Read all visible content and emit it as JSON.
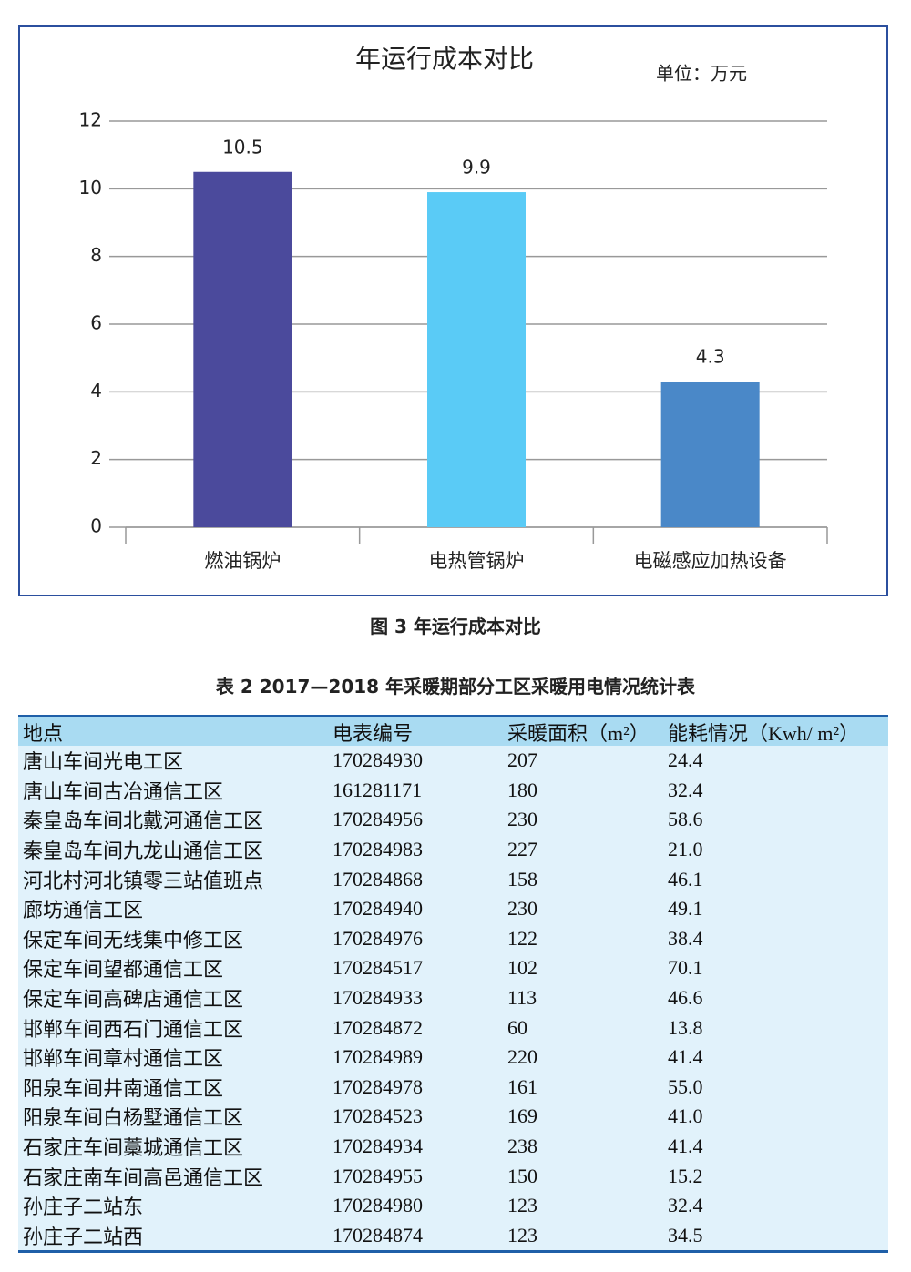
{
  "chart_data": {
    "type": "bar",
    "title": "年运行成本对比",
    "subtitle": "单位：万元",
    "categories": [
      "燃油锅炉",
      "电热管锅炉",
      "电磁感应加热设备"
    ],
    "values": [
      10.5,
      9.9,
      4.3
    ],
    "colors": [
      "#4b4a9c",
      "#5acbf6",
      "#4a88c8"
    ],
    "ylim": [
      0,
      12
    ],
    "yticks": [
      0,
      2,
      4,
      6,
      8,
      10,
      12
    ],
    "grid": true
  },
  "figure_caption": "图 3  年运行成本对比",
  "table": {
    "title": "表 2   2017—2018 年采暖期部分工区采暖用电情况统计表",
    "header": [
      "地点",
      "电表编号",
      "采暖面积（m²）",
      "能耗情况（Kwh/ m²）"
    ],
    "rows": [
      [
        "唐山车间光电工区",
        "170284930",
        "207",
        "24.4"
      ],
      [
        "唐山车间古冶通信工区",
        "161281171",
        "180",
        "32.4"
      ],
      [
        "秦皇岛车间北戴河通信工区",
        "170284956",
        "230",
        "58.6"
      ],
      [
        "秦皇岛车间九龙山通信工区",
        "170284983",
        "227",
        "21.0"
      ],
      [
        "河北村河北镇零三站值班点",
        "170284868",
        "158",
        "46.1"
      ],
      [
        "廊坊通信工区",
        "170284940",
        "230",
        "49.1"
      ],
      [
        "保定车间无线集中修工区",
        "170284976",
        "122",
        "38.4"
      ],
      [
        "保定车间望都通信工区",
        "170284517",
        "102",
        "70.1"
      ],
      [
        "保定车间高碑店通信工区",
        "170284933",
        "113",
        "46.6"
      ],
      [
        "邯郸车间西石门通信工区",
        "170284872",
        "60",
        "13.8"
      ],
      [
        "邯郸车间章村通信工区",
        "170284989",
        "220",
        "41.4"
      ],
      [
        "阳泉车间井南通信工区",
        "170284978",
        "161",
        "55.0"
      ],
      [
        "阳泉车间白杨墅通信工区",
        "170284523",
        "169",
        "41.0"
      ],
      [
        "石家庄车间藁城通信工区",
        "170284934",
        "238",
        "41.4"
      ],
      [
        "石家庄南车间高邑通信工区",
        "170284955",
        "150",
        "15.2"
      ],
      [
        "孙庄子二站东",
        "170284980",
        "123",
        "32.4"
      ],
      [
        "孙庄子二站西",
        "170284874",
        "123",
        "34.5"
      ]
    ]
  }
}
